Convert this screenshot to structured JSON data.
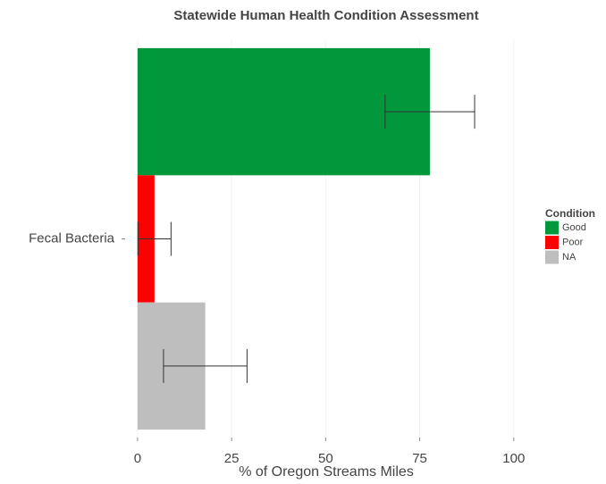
{
  "chart_data": {
    "type": "bar",
    "orientation": "horizontal",
    "title": "Statewide Human Health Condition Assessment",
    "x_label": "% of Oregon Streams Miles",
    "categories": [
      "Fecal Bacteria"
    ],
    "series": [
      {
        "name": "Good",
        "color": "#00983a",
        "values": [
          77.7
        ],
        "errors": [
          11.9
        ]
      },
      {
        "name": "Poor",
        "color": "#ff0000",
        "values": [
          4.5
        ],
        "errors": [
          4.4
        ]
      },
      {
        "name": "NA",
        "color": "#bebebe",
        "values": [
          18.0
        ],
        "errors": [
          11.1
        ]
      }
    ],
    "legend_title": "Condition",
    "legend": "right",
    "xlim": [
      -3.3,
      104.8
    ],
    "xticks": [
      0,
      25,
      50,
      75,
      100
    ],
    "grid": true
  }
}
